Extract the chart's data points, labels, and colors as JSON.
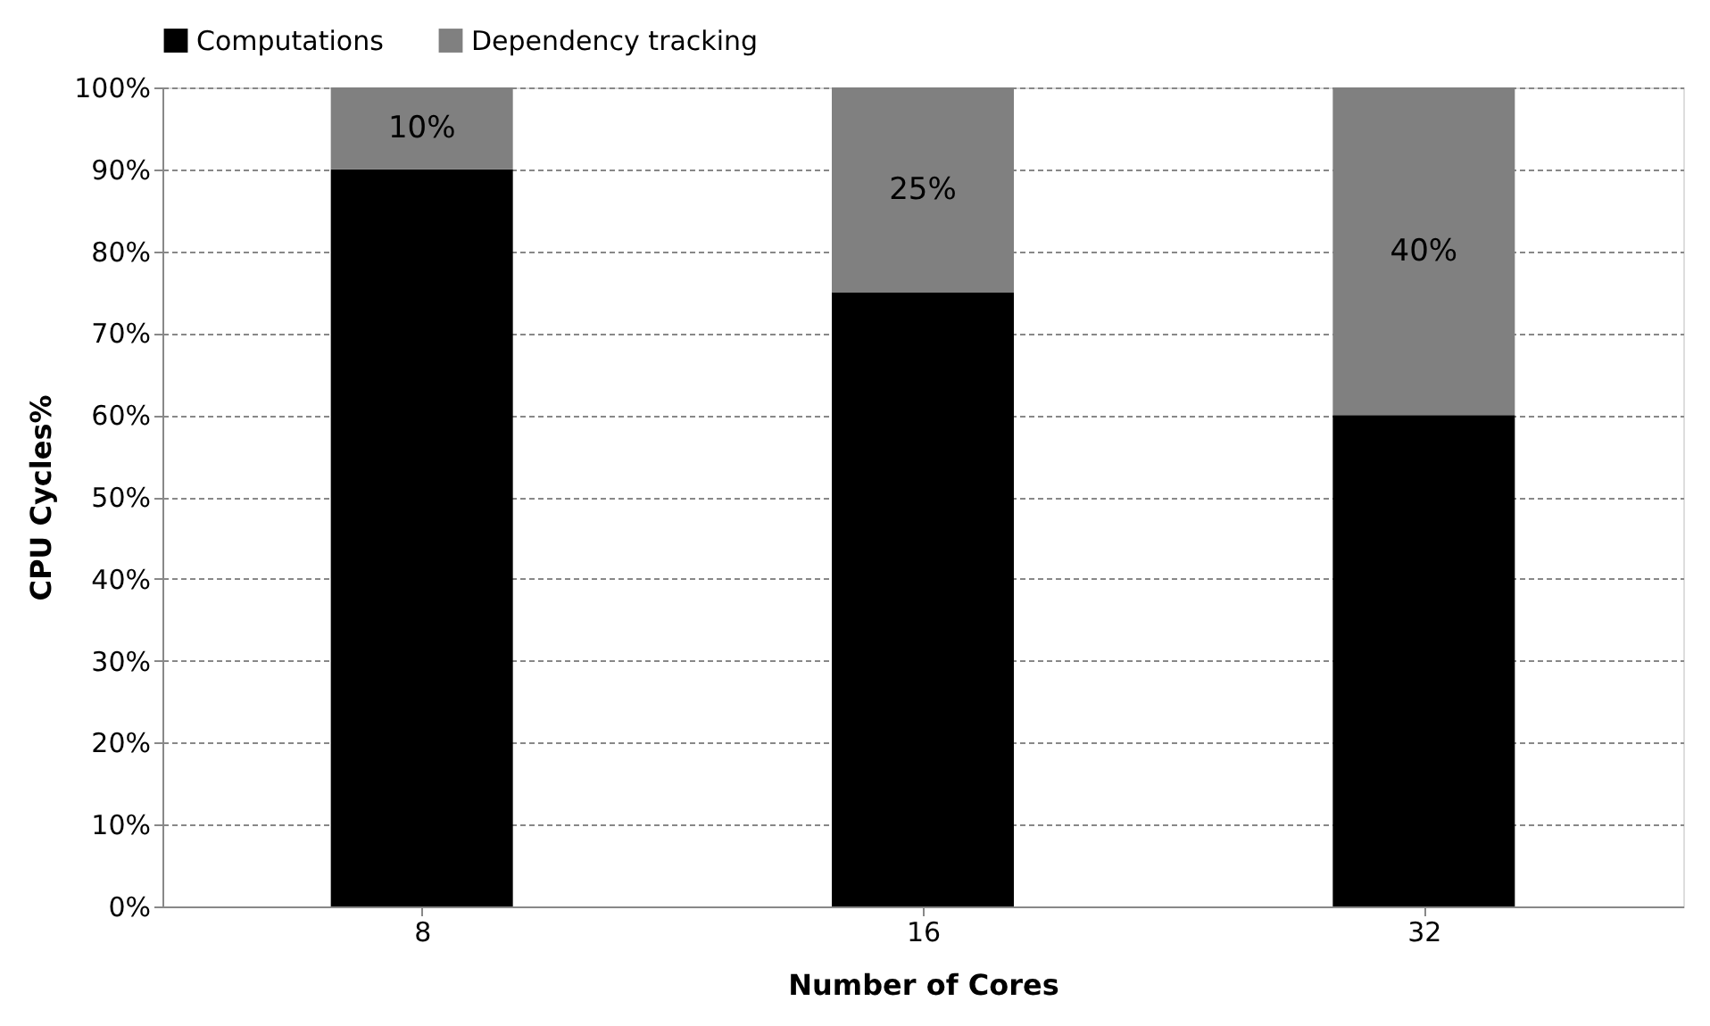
{
  "chart_data": {
    "type": "bar",
    "stacked": true,
    "xlabel": "Number of Cores",
    "ylabel": "CPU Cycles%",
    "categories": [
      "8",
      "16",
      "32"
    ],
    "series": [
      {
        "name": "Computations",
        "color": "#000000",
        "values": [
          90,
          75,
          60
        ]
      },
      {
        "name": "Dependency tracking",
        "color": "#808080",
        "values": [
          10,
          25,
          40
        ],
        "value_labels": [
          "10%",
          "25%",
          "40%"
        ]
      }
    ],
    "ylim": [
      0,
      100
    ],
    "yticks": [
      {
        "value": 0,
        "label": "0%"
      },
      {
        "value": 10,
        "label": "10%"
      },
      {
        "value": 20,
        "label": "20%"
      },
      {
        "value": 30,
        "label": "30%"
      },
      {
        "value": 40,
        "label": "40%"
      },
      {
        "value": 50,
        "label": "50%"
      },
      {
        "value": 60,
        "label": "60%"
      },
      {
        "value": 70,
        "label": "70%"
      },
      {
        "value": 80,
        "label": "80%"
      },
      {
        "value": 90,
        "label": "90%"
      },
      {
        "value": 100,
        "label": "100%"
      }
    ],
    "grid": "y",
    "legend": "top"
  }
}
